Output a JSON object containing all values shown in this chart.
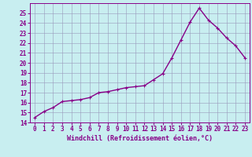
{
  "x": [
    0,
    1,
    2,
    3,
    4,
    5,
    6,
    7,
    8,
    9,
    10,
    11,
    12,
    13,
    14,
    15,
    16,
    17,
    18,
    19,
    20,
    21,
    22,
    23
  ],
  "y": [
    14.5,
    15.1,
    15.5,
    16.1,
    16.2,
    16.3,
    16.5,
    17.0,
    17.1,
    17.3,
    17.5,
    17.6,
    17.7,
    18.3,
    18.9,
    20.5,
    22.3,
    24.1,
    25.5,
    24.3,
    23.5,
    22.5,
    21.7,
    20.5
  ],
  "line_color": "#880088",
  "marker": "+",
  "bg_color": "#c8eef0",
  "grid_color": "#9999bb",
  "xlabel": "Windchill (Refroidissement éolien,°C)",
  "ylabel": "",
  "title": "",
  "xlim": [
    -0.5,
    23.5
  ],
  "ylim": [
    14,
    26
  ],
  "yticks": [
    14,
    15,
    16,
    17,
    18,
    19,
    20,
    21,
    22,
    23,
    24,
    25
  ],
  "xticks": [
    0,
    1,
    2,
    3,
    4,
    5,
    6,
    7,
    8,
    9,
    10,
    11,
    12,
    13,
    14,
    15,
    16,
    17,
    18,
    19,
    20,
    21,
    22,
    23
  ],
  "tick_fontsize": 5.5,
  "xlabel_fontsize": 6.0,
  "line_width": 1.0,
  "marker_size": 3.5,
  "marker_edge_width": 0.8
}
